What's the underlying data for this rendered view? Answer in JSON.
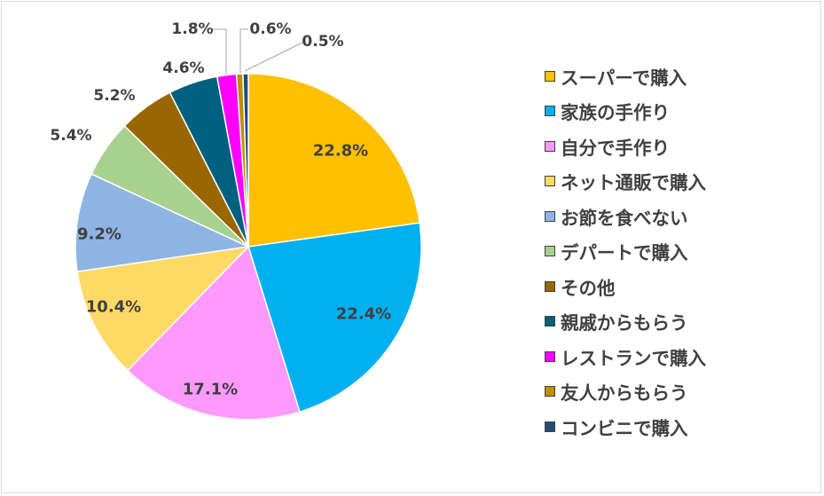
{
  "chart_data": {
    "type": "pie",
    "title": "",
    "slices": [
      {
        "label": "スーパーで購入",
        "value": 22.8,
        "value_label": "22.8%",
        "color": "#FFC000"
      },
      {
        "label": "家族の手作り",
        "value": 22.4,
        "value_label": "22.4%",
        "color": "#00B0F0"
      },
      {
        "label": "自分で手作り",
        "value": 17.1,
        "value_label": "17.1%",
        "color": "#FF99FF"
      },
      {
        "label": "ネット通販で購入",
        "value": 10.4,
        "value_label": "10.4%",
        "color": "#FFD966"
      },
      {
        "label": "お節を食べない",
        "value": 9.2,
        "value_label": "9.2%",
        "color": "#8EB4E3"
      },
      {
        "label": "デパートで購入",
        "value": 5.4,
        "value_label": "5.4%",
        "color": "#A9D18E"
      },
      {
        "label": "その他",
        "value": 5.2,
        "value_label": "5.2%",
        "color": "#996600"
      },
      {
        "label": "親戚からもらう",
        "value": 4.6,
        "value_label": "4.6%",
        "color": "#006080"
      },
      {
        "label": "レストランで購入",
        "value": 1.8,
        "value_label": "1.8%",
        "color": "#FF00FF"
      },
      {
        "label": "友人からもらう",
        "value": 0.6,
        "value_label": "0.6%",
        "color": "#BF8F00"
      },
      {
        "label": "コンビニで購入",
        "value": 0.5,
        "value_label": "0.5%",
        "color": "#1F4E79"
      }
    ],
    "legend_position": "right"
  }
}
